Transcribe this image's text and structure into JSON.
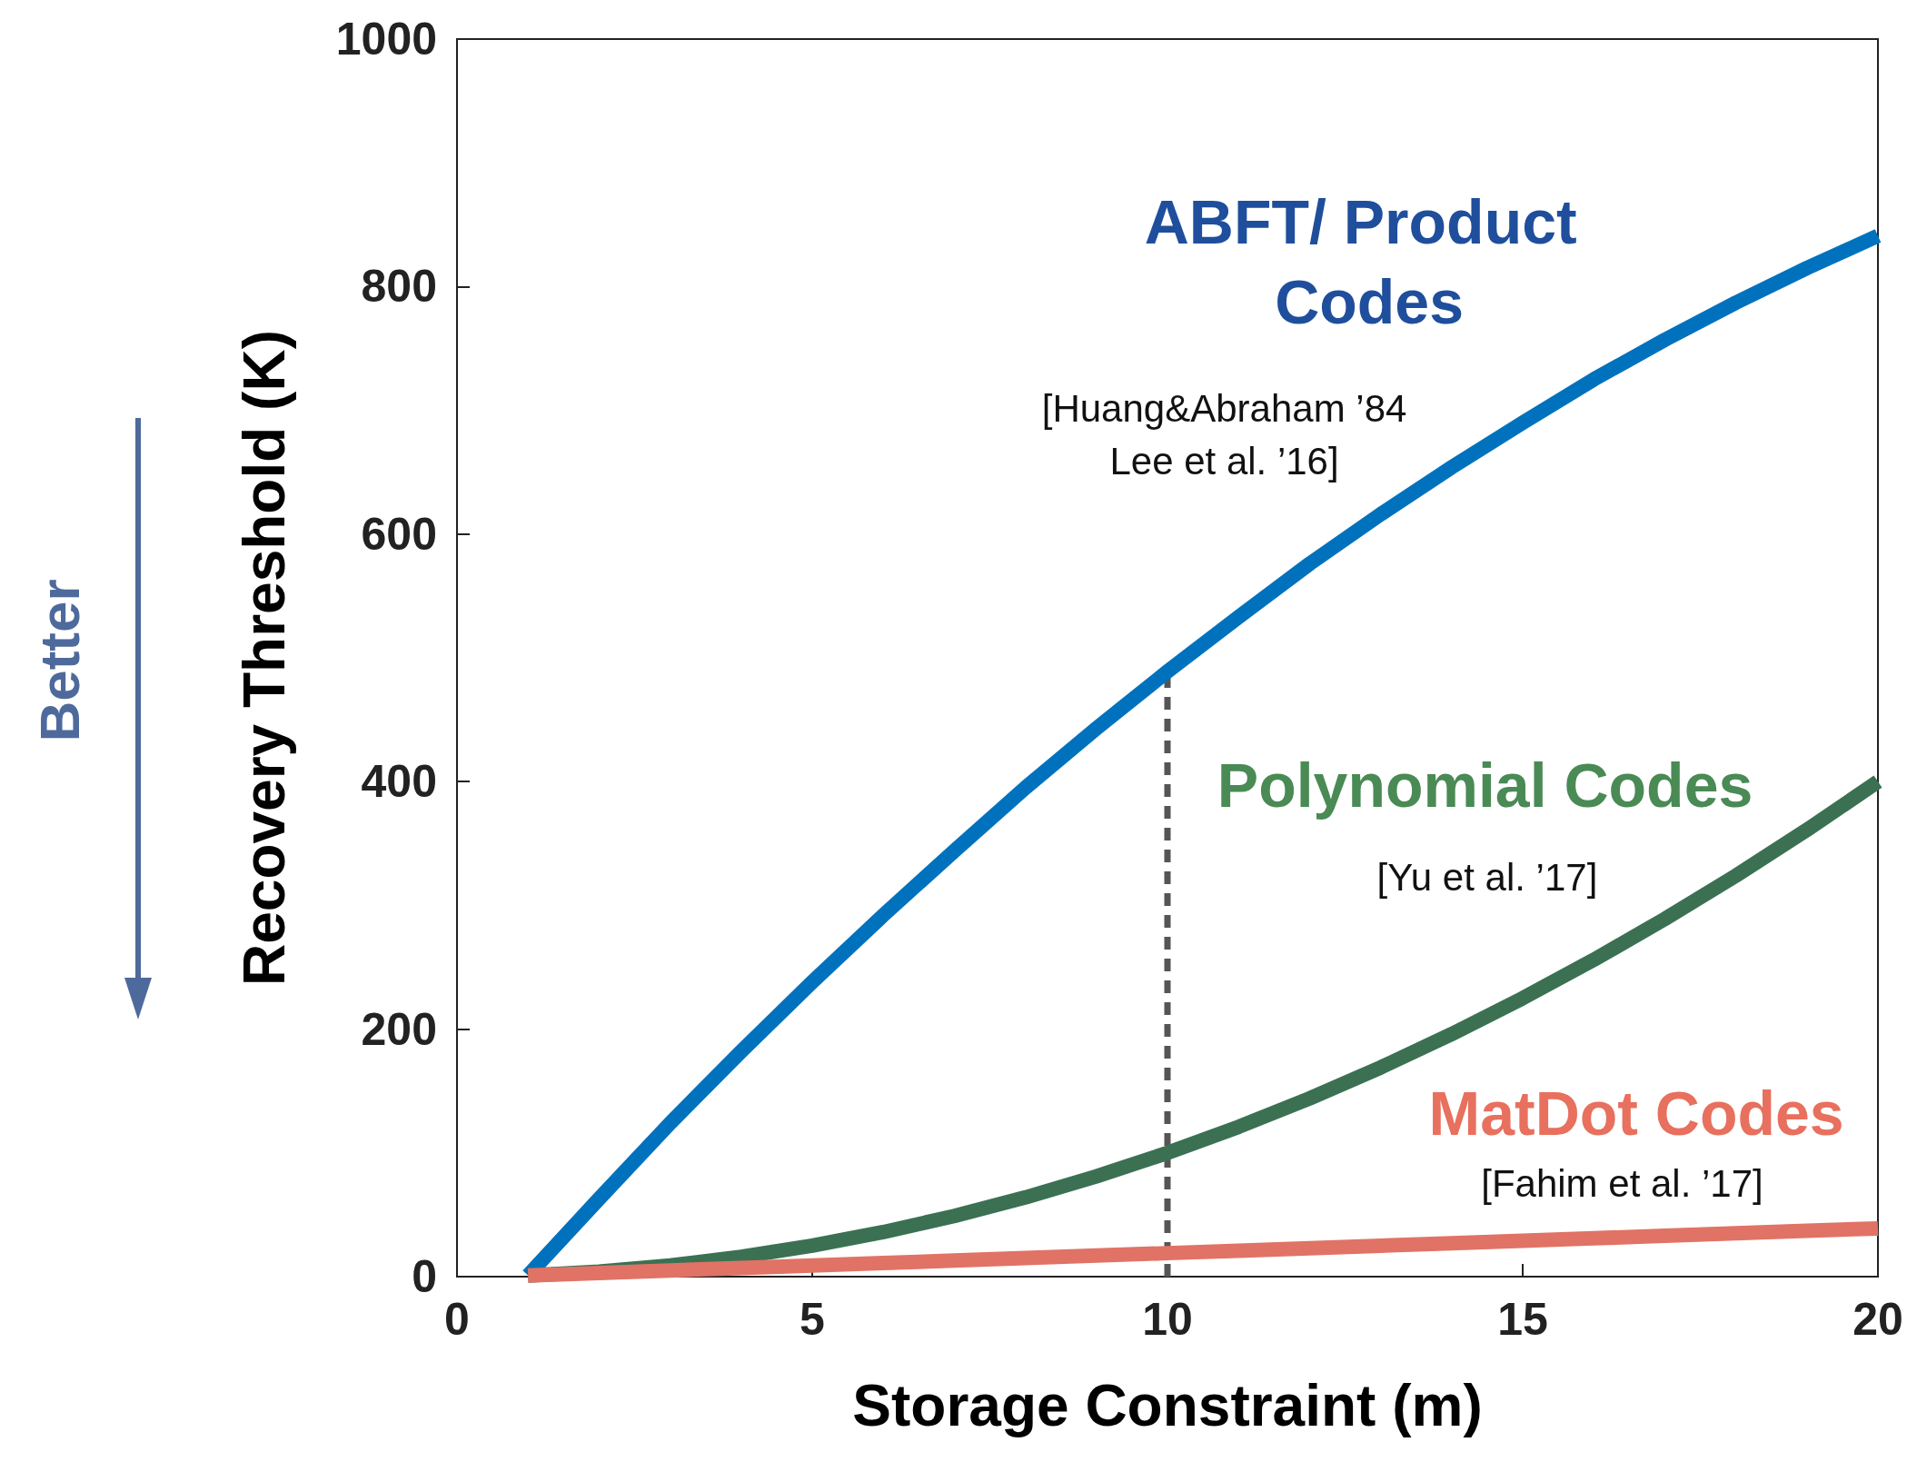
{
  "chart_data": {
    "type": "line",
    "xlabel": "Storage Constraint (m)",
    "ylabel": "Recovery Threshold (K)",
    "x": [
      1,
      2,
      3,
      4,
      5,
      6,
      7,
      8,
      9,
      10,
      11,
      12,
      13,
      14,
      15,
      16,
      17,
      18,
      19,
      20
    ],
    "xlim": [
      0,
      20
    ],
    "xticks": [
      0,
      5,
      10,
      15,
      20
    ],
    "ylim": [
      0,
      1000
    ],
    "yticks": [
      0,
      200,
      400,
      600,
      800,
      1000
    ],
    "grid": false,
    "legend": false,
    "marker": "none",
    "line_style": "solid",
    "series": [
      {
        "name": "ABFT/ Product Codes",
        "color": "#0072bd",
        "values": [
          1,
          63,
          124,
          182,
          238,
          292,
          344,
          395,
          443,
          489,
          533,
          576,
          616,
          654,
          690,
          725,
          757,
          787,
          815,
          841
        ]
      },
      {
        "name": "Polynomial Codes",
        "color": "#3b7152",
        "values": [
          1,
          4,
          9,
          16,
          25,
          36,
          49,
          64,
          81,
          100,
          121,
          144,
          169,
          196,
          225,
          256,
          289,
          324,
          361,
          400
        ]
      },
      {
        "name": "MatDot Codes",
        "color": "#e07365",
        "values": [
          1,
          3,
          5,
          7,
          9,
          11,
          13,
          15,
          17,
          19,
          21,
          23,
          25,
          27,
          29,
          31,
          33,
          35,
          37,
          39
        ]
      },
      {
        "type": "line",
        "color": "#555555",
        "line_style": "dashed",
        "x": [
          10,
          10
        ],
        "values": [
          0,
          489
        ]
      }
    ],
    "annotations": [
      "[Huang&Abraham ’84\nLee et al. ’16]",
      "[Yu et al. ’17]",
      "[Fahim et al. ’17]",
      "Better"
    ]
  }
}
